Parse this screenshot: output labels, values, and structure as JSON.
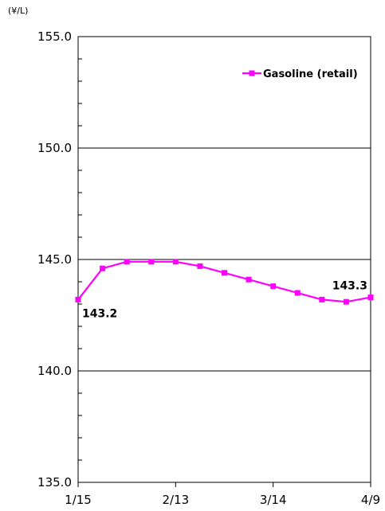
{
  "chart_data": {
    "type": "line",
    "unit_label": "(¥/L)",
    "ylim": [
      135.0,
      155.0
    ],
    "y_ticks": [
      "135.0",
      "140.0",
      "145.0",
      "150.0",
      "155.0"
    ],
    "x_tick_labels": [
      "1/15",
      "2/13",
      "3/14",
      "4/9"
    ],
    "grid": true,
    "legend_position": "top-right",
    "series": [
      {
        "name": "Gasoline (retail)",
        "color": "#ff00ff",
        "values": [
          143.2,
          144.6,
          144.9,
          144.9,
          144.9,
          144.7,
          144.4,
          144.1,
          143.8,
          143.5,
          143.2,
          143.1,
          143.3
        ]
      }
    ],
    "annotations": [
      {
        "text": "143.2",
        "point_index": 0
      },
      {
        "text": "143.3",
        "point_index": 12
      }
    ]
  }
}
